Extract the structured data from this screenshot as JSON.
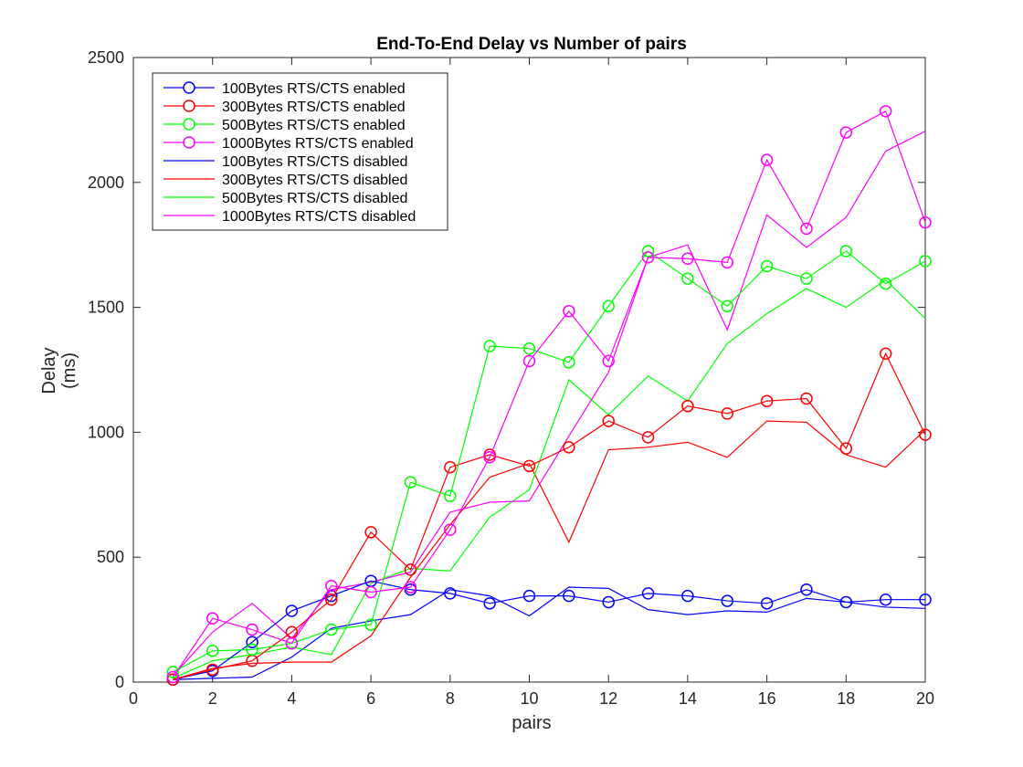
{
  "chart_data": {
    "type": "line",
    "title": "End-To-End Delay vs Number of pairs",
    "xlabel": "pairs",
    "ylabel": [
      "Delay",
      "(ms)"
    ],
    "xlim": [
      0,
      20
    ],
    "ylim": [
      0,
      2500
    ],
    "xticks": [
      0,
      2,
      4,
      6,
      8,
      10,
      12,
      14,
      16,
      18,
      20
    ],
    "yticks": [
      0,
      500,
      1000,
      1500,
      2000,
      2500
    ],
    "grid": false,
    "legend_position": "top-left",
    "x": [
      1,
      2,
      3,
      4,
      5,
      6,
      7,
      8,
      9,
      10,
      11,
      12,
      13,
      14,
      15,
      16,
      17,
      18,
      19,
      20
    ],
    "series": [
      {
        "name": "100Bytes RTS/CTS enabled",
        "color": "#0000FF",
        "style": "circle-line",
        "values": [
          10,
          45,
          160,
          285,
          345,
          405,
          370,
          355,
          315,
          345,
          345,
          320,
          355,
          345,
          325,
          315,
          370,
          320,
          330,
          330
        ]
      },
      {
        "name": "300Bytes RTS/CTS enabled",
        "color": "#FF0000",
        "style": "circle-line",
        "values": [
          10,
          50,
          85,
          200,
          330,
          600,
          450,
          860,
          910,
          865,
          940,
          1045,
          980,
          1105,
          1075,
          1125,
          1135,
          935,
          1315,
          990
        ]
      },
      {
        "name": "500Bytes RTS/CTS enabled",
        "color": "#00FF00",
        "style": "circle-line",
        "values": [
          40,
          125,
          130,
          155,
          210,
          230,
          800,
          745,
          1345,
          1335,
          1280,
          1505,
          1725,
          1615,
          1505,
          1665,
          1615,
          1725,
          1595,
          1685
        ]
      },
      {
        "name": "1000Bytes RTS/CTS enabled",
        "color": "#FF00FF",
        "style": "circle-line",
        "values": [
          20,
          255,
          210,
          155,
          385,
          360,
          380,
          610,
          900,
          1285,
          1485,
          1285,
          1700,
          1695,
          1680,
          2090,
          1815,
          2200,
          2285,
          1840
        ]
      },
      {
        "name": "100Bytes RTS/CTS disabled",
        "color": "#0000FF",
        "style": "line",
        "values": [
          10,
          15,
          20,
          100,
          215,
          245,
          270,
          370,
          345,
          265,
          380,
          375,
          290,
          270,
          285,
          280,
          335,
          320,
          300,
          295
        ]
      },
      {
        "name": "300Bytes RTS/CTS disabled",
        "color": "#FF0000",
        "style": "line",
        "values": [
          10,
          55,
          75,
          80,
          80,
          185,
          420,
          630,
          820,
          875,
          560,
          930,
          940,
          960,
          900,
          1045,
          1040,
          910,
          860,
          1010
        ]
      },
      {
        "name": "500Bytes RTS/CTS disabled",
        "color": "#00FF00",
        "style": "line",
        "values": [
          15,
          85,
          110,
          140,
          110,
          395,
          455,
          445,
          660,
          770,
          1210,
          1070,
          1225,
          1125,
          1355,
          1475,
          1575,
          1500,
          1610,
          1455
        ]
      },
      {
        "name": "1000Bytes RTS/CTS disabled",
        "color": "#FF00FF",
        "style": "line",
        "values": [
          25,
          200,
          315,
          175,
          370,
          400,
          440,
          680,
          720,
          725,
          985,
          1240,
          1700,
          1750,
          1410,
          1870,
          1740,
          1860,
          2125,
          2205
        ]
      }
    ]
  }
}
